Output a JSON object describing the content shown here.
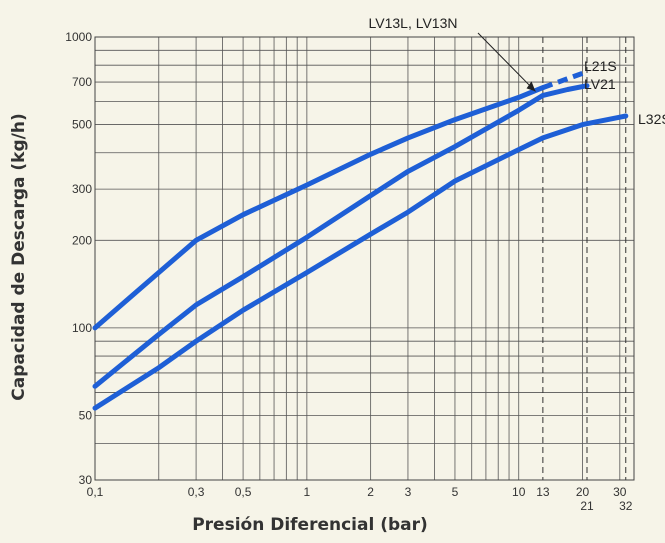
{
  "chart_data": {
    "type": "line",
    "xlabel": "Presión Diferencial (bar)",
    "ylabel": "Capacidad de Descarga (kg/h)",
    "x_scale": "log",
    "y_scale": "log",
    "xlim": [
      0.1,
      35
    ],
    "ylim": [
      30,
      1000
    ],
    "grid": true,
    "x_tick_labels": [
      {
        "value": 0.1,
        "label": "0,1"
      },
      {
        "value": 0.3,
        "label": "0,3"
      },
      {
        "value": 0.5,
        "label": "0,5"
      },
      {
        "value": 1,
        "label": "1"
      },
      {
        "value": 2,
        "label": "2"
      },
      {
        "value": 3,
        "label": "3"
      },
      {
        "value": 5,
        "label": "5"
      },
      {
        "value": 10,
        "label": "10"
      },
      {
        "value": 13,
        "label": "13"
      },
      {
        "value": 20,
        "label": "20"
      },
      {
        "value": 30,
        "label": "30"
      }
    ],
    "x_tick_labels_second_row": [
      {
        "value": 21,
        "label": "21"
      },
      {
        "value": 32,
        "label": "32"
      }
    ],
    "y_tick_labels": [
      {
        "value": 30,
        "label": "30"
      },
      {
        "value": 50,
        "label": "50"
      },
      {
        "value": 100,
        "label": "100"
      },
      {
        "value": 200,
        "label": "200"
      },
      {
        "value": 300,
        "label": "300"
      },
      {
        "value": 500,
        "label": "500"
      },
      {
        "value": 700,
        "label": "700"
      },
      {
        "value": 1000,
        "label": "1000"
      }
    ],
    "reference_lines_x": [
      13,
      21,
      32
    ],
    "series": [
      {
        "name": "LV13L, LV13N",
        "color": "#1e5fd6",
        "points": [
          [
            0.1,
            100
          ],
          [
            0.2,
            155
          ],
          [
            0.3,
            200
          ],
          [
            0.5,
            245
          ],
          [
            1,
            310
          ],
          [
            2,
            395
          ],
          [
            3,
            450
          ],
          [
            5,
            520
          ],
          [
            10,
            620
          ],
          [
            13,
            670
          ]
        ],
        "dashed_extension": [
          [
            13,
            670
          ],
          [
            21,
            760
          ]
        ]
      },
      {
        "name": "L21S",
        "color": "#1e5fd6",
        "points": [
          [
            13,
            670
          ],
          [
            21,
            760
          ]
        ]
      },
      {
        "name": "LV21",
        "color": "#1e5fd6",
        "points": [
          [
            0.1,
            63
          ],
          [
            0.2,
            95
          ],
          [
            0.3,
            120
          ],
          [
            0.5,
            150
          ],
          [
            1,
            205
          ],
          [
            2,
            285
          ],
          [
            3,
            345
          ],
          [
            5,
            420
          ],
          [
            10,
            560
          ],
          [
            13,
            630
          ],
          [
            17,
            660
          ],
          [
            21,
            680
          ]
        ]
      },
      {
        "name": "L32S",
        "color": "#1e5fd6",
        "points": [
          [
            0.1,
            53
          ],
          [
            0.2,
            73
          ],
          [
            0.3,
            90
          ],
          [
            0.5,
            115
          ],
          [
            1,
            155
          ],
          [
            2,
            210
          ],
          [
            3,
            250
          ],
          [
            5,
            320
          ],
          [
            10,
            410
          ],
          [
            13,
            450
          ],
          [
            20,
            500
          ],
          [
            30,
            530
          ],
          [
            32,
            535
          ]
        ]
      }
    ]
  }
}
